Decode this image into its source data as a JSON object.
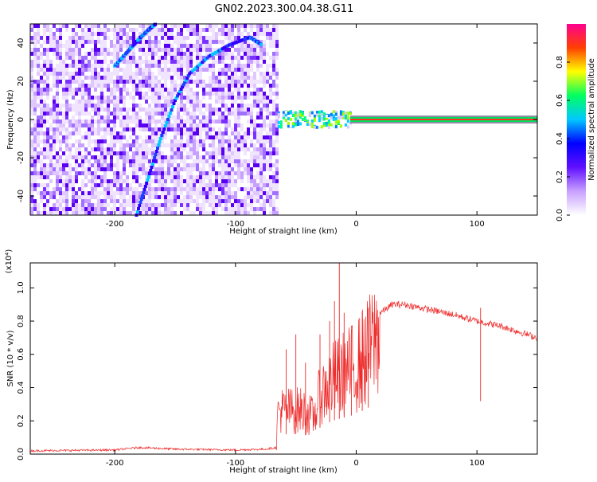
{
  "figure": {
    "title": "GN02.2023.300.04.38.G11"
  },
  "chart_data": [
    {
      "type": "heatmap",
      "xlabel": "Height of straight line (km)",
      "ylabel": "Frequency (Hz)",
      "xlim": [
        -270,
        150
      ],
      "ylim": [
        -50,
        50
      ],
      "x_ticks": [
        -200,
        -100,
        0,
        100
      ],
      "y_ticks": [
        -40,
        -20,
        0,
        20,
        40
      ],
      "noise_region_x": [
        -270,
        -65
      ],
      "curve_a_points": [
        [
          -182,
          -50
        ],
        [
          -172,
          -30
        ],
        [
          -162,
          -10
        ],
        [
          -150,
          10
        ],
        [
          -138,
          24
        ],
        [
          -122,
          33
        ],
        [
          -105,
          39
        ],
        [
          -88,
          43
        ],
        [
          -78,
          39
        ]
      ],
      "curve_b_points": [
        [
          -200,
          28
        ],
        [
          -190,
          35
        ],
        [
          -180,
          42
        ],
        [
          -172,
          47
        ],
        [
          -166,
          50
        ]
      ],
      "band_center_hz": 0,
      "colorbar": {
        "label": "Normalized spectral amplitude",
        "range": [
          0,
          1
        ],
        "ticks": [
          "0.0",
          "0.2",
          "0.4",
          "0.6",
          "0.8"
        ],
        "colors": [
          "#ffffff",
          "#c8a0ff",
          "#6010ff",
          "#0000ff",
          "#00c8ff",
          "#00ff60",
          "#ffff00",
          "#ff4000",
          "#ff0090"
        ]
      }
    },
    {
      "type": "line",
      "multiplier": "(x10⁴)",
      "xlabel": "Height of straight line (km)",
      "ylabel": "SNR (10 * v/v)",
      "xlim": [
        -270,
        150
      ],
      "ylim": [
        0,
        1.15
      ],
      "x_ticks": [
        -200,
        -100,
        0,
        100
      ],
      "y_ticks": [
        0.0,
        0.2,
        0.4,
        0.6,
        0.8,
        1.0
      ],
      "y_tick_labels": [
        "0.0",
        "0.2",
        "0.4",
        "0.6",
        "0.8",
        "1.0"
      ],
      "line_color": "#ee2a2a",
      "envelope": [
        [
          -270,
          0.02
        ],
        [
          -200,
          0.025
        ],
        [
          -180,
          0.04
        ],
        [
          -150,
          0.03
        ],
        [
          -100,
          0.025
        ],
        [
          -75,
          0.03
        ],
        [
          -66,
          0.04
        ],
        [
          -65,
          0.3
        ],
        [
          -55,
          0.3
        ],
        [
          -45,
          0.3
        ],
        [
          -35,
          0.25
        ],
        [
          -30,
          0.4
        ],
        [
          -20,
          0.5
        ],
        [
          -10,
          0.55
        ],
        [
          0,
          0.6
        ],
        [
          10,
          0.7
        ],
        [
          20,
          0.85
        ],
        [
          30,
          0.9
        ],
        [
          40,
          0.9
        ],
        [
          60,
          0.87
        ],
        [
          80,
          0.84
        ],
        [
          100,
          0.8
        ],
        [
          120,
          0.77
        ],
        [
          150,
          0.7
        ]
      ],
      "spikes": [
        [
          -58,
          0.63
        ],
        [
          -50,
          0.72
        ],
        [
          -42,
          0.55
        ],
        [
          -30,
          0.72
        ],
        [
          -22,
          0.8
        ],
        [
          -18,
          0.92
        ],
        [
          -14,
          1.18
        ],
        [
          -10,
          0.85
        ],
        [
          -4,
          0.75
        ],
        [
          5,
          0.86
        ],
        [
          10,
          0.88
        ],
        [
          103,
          0.88
        ]
      ]
    }
  ]
}
